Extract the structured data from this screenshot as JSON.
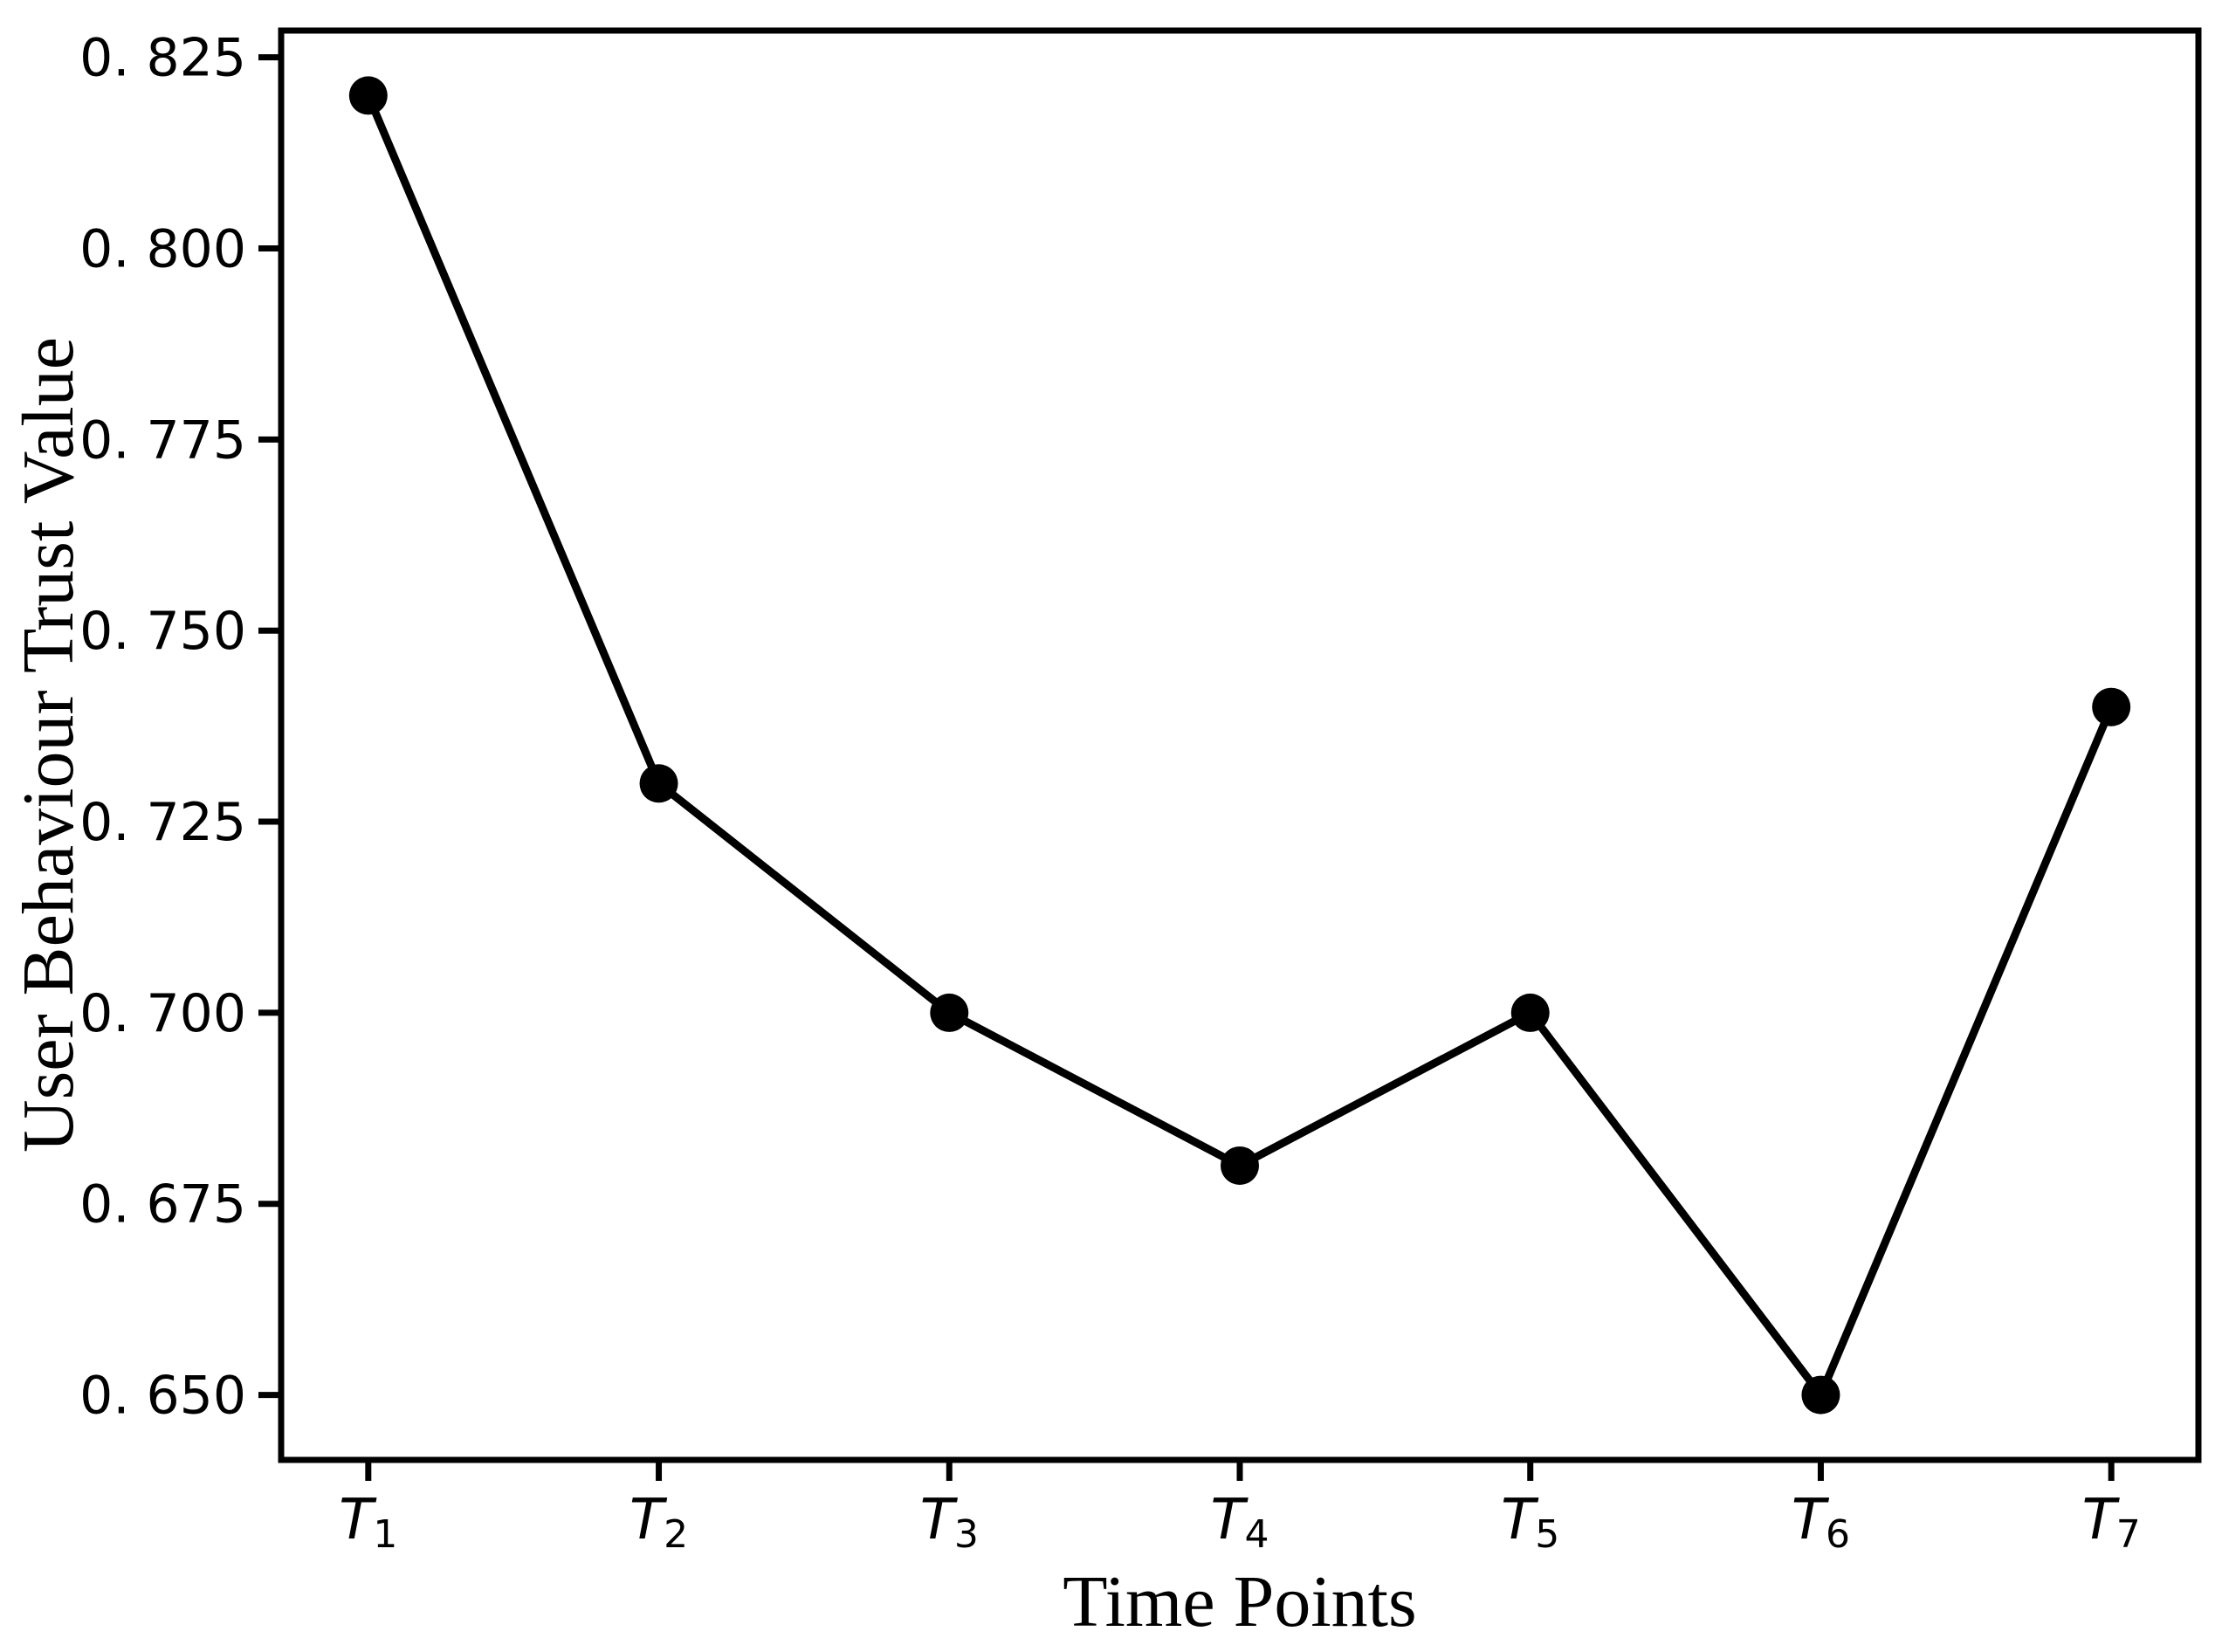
{
  "page": {
    "background": "#ffffff"
  },
  "chart_data": {
    "type": "line",
    "title": "",
    "xlabel": "Time Points",
    "ylabel": "User Behaviour Trust Value",
    "categories": [
      "T1",
      "T2",
      "T3",
      "T4",
      "T5",
      "T6",
      "T7"
    ],
    "values": [
      0.82,
      0.73,
      0.7,
      0.68,
      0.7,
      0.65,
      0.74
    ],
    "yticks": [
      0.65,
      0.675,
      0.7,
      0.725,
      0.75,
      0.775,
      0.8,
      0.825
    ],
    "ytick_labels": [
      "0. 650",
      "0. 675",
      "0. 700",
      "0. 725",
      "0. 750",
      "0. 775",
      "0. 800",
      "0. 825"
    ],
    "ylim": [
      0.6415,
      0.8285
    ],
    "x_index_padding": 0.3,
    "grid": false,
    "legend_position": "none",
    "line_color": "#000000",
    "marker": "circle",
    "marker_color": "#000000",
    "axis_color": "#000000",
    "text_color": "#000000"
  }
}
